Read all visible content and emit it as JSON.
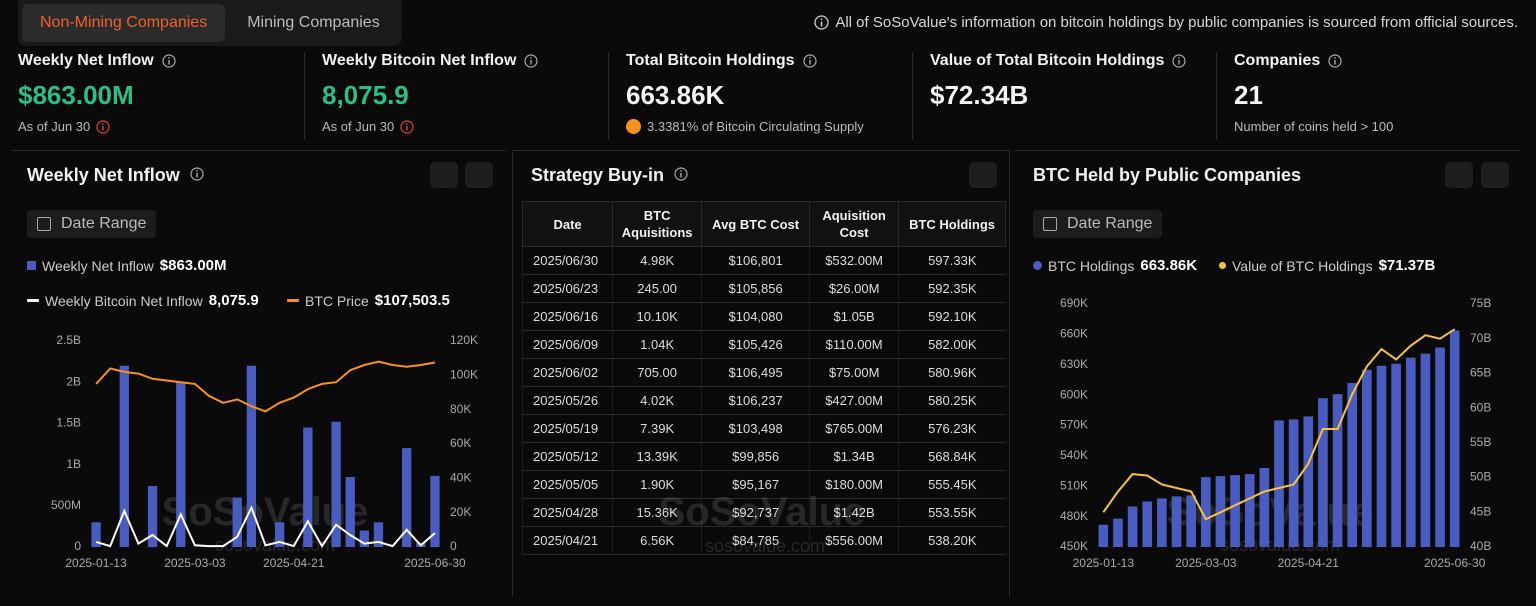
{
  "tabs": [
    "Non-Mining Companies",
    "Mining Companies"
  ],
  "notice": "All of SoSoValue's information on bitcoin holdings by public companies is sourced from official sources.",
  "stats": [
    {
      "label": "Weekly Net Inflow",
      "value": "$863.00M",
      "note": "As of Jun 30"
    },
    {
      "label": "Weekly Bitcoin Net Inflow",
      "value": "8,075.9",
      "note": "As of Jun 30"
    },
    {
      "label": "Total Bitcoin Holdings",
      "value": "663.86K",
      "note": "3.3381% of Bitcoin Circulating Supply"
    },
    {
      "label": "Value of Total Bitcoin Holdings",
      "value": "$72.34B"
    },
    {
      "label": "Companies",
      "value": "21",
      "note": "Number of coins held > 100"
    }
  ],
  "watermark": "SoSoValue",
  "watermark_url": "sosovalue.com",
  "inflow_chart": {
    "type": "bar",
    "title": "Weekly Net Inflow",
    "date_range": "Date Range",
    "categories": [
      "2025-01-13",
      null,
      null,
      null,
      null,
      null,
      null,
      "2025-03-03",
      null,
      null,
      null,
      null,
      null,
      null,
      "2025-04-21",
      null,
      null,
      null,
      null,
      null,
      null,
      null,
      null,
      null,
      "2025-06-30"
    ],
    "ylim": [
      0,
      2500000000
    ],
    "yticks": [
      0,
      {
        "value": 500000000,
        "label": "500M"
      },
      {
        "value": 1000000000,
        "label": "1B"
      },
      {
        "value": 1500000000,
        "label": "1.5B"
      },
      {
        "value": 2000000000,
        "label": "2B"
      },
      {
        "value": 2500000000,
        "label": "2.5B"
      }
    ],
    "y2lim": [
      0,
      120000
    ],
    "y2ticks": [
      0,
      {
        "value": 20000,
        "label": "20K"
      },
      {
        "value": 40000,
        "label": "40K"
      },
      {
        "value": 60000,
        "label": "60K"
      },
      {
        "value": 80000,
        "label": "80K"
      },
      {
        "value": 100000,
        "label": "100K"
      },
      {
        "value": 120000,
        "label": "120K"
      }
    ],
    "series": [
      {
        "name": "Weekly Net Inflow",
        "latest": "$863.00M",
        "type": "bar",
        "color": "#4a5cbf",
        "values": [
          300000000,
          0,
          2200000000,
          0,
          740000000,
          0,
          2000000000,
          0,
          0,
          0,
          600000000,
          2200000000,
          0,
          300000000,
          0,
          1450000000,
          0,
          1520000000,
          850000000,
          200000000,
          300000000,
          0,
          1200000000,
          50000000,
          863000000
        ]
      },
      {
        "name": "Weekly Bitcoin Net Inflow",
        "latest": "8,075.9",
        "type": "line",
        "axis": "y2",
        "color": "#ffffff",
        "values": [
          3000,
          500,
          21000,
          2000,
          7000,
          500,
          19000,
          1000,
          500,
          500,
          6000,
          23000,
          1000,
          3000,
          500,
          15000,
          500,
          13000,
          7000,
          2000,
          3000,
          500,
          10000,
          1000,
          8075.9
        ]
      },
      {
        "name": "BTC Price",
        "latest": "$107,503.5",
        "type": "line",
        "axis": "y2",
        "color": "#f7931a",
        "values": [
          95000,
          104000,
          102000,
          101000,
          98000,
          97000,
          96000,
          95000,
          88000,
          84000,
          86000,
          82000,
          79000,
          84000,
          87000,
          92000,
          95000,
          96000,
          103000,
          106000,
          108000,
          106000,
          105000,
          106000,
          107503.5
        ]
      }
    ]
  },
  "table": {
    "title": "Strategy Buy-in",
    "headers": [
      "Date",
      "BTC Aquisitions",
      "Avg BTC Cost",
      "Aquisition Cost",
      "BTC Holdings"
    ],
    "rows": [
      [
        "2025/06/30",
        "4.98K",
        "$106,801",
        "$532.00M",
        "597.33K"
      ],
      [
        "2025/06/23",
        "245.00",
        "$105,856",
        "$26.00M",
        "592.35K"
      ],
      [
        "2025/06/16",
        "10.10K",
        "$104,080",
        "$1.05B",
        "592.10K"
      ],
      [
        "2025/06/09",
        "1.04K",
        "$105,426",
        "$110.00M",
        "582.00K"
      ],
      [
        "2025/06/02",
        "705.00",
        "$106,495",
        "$75.00M",
        "580.96K"
      ],
      [
        "2025/05/26",
        "4.02K",
        "$106,237",
        "$427.00M",
        "580.25K"
      ],
      [
        "2025/05/19",
        "7.39K",
        "$103,498",
        "$765.00M",
        "576.23K"
      ],
      [
        "2025/05/12",
        "13.39K",
        "$99,856",
        "$1.34B",
        "568.84K"
      ],
      [
        "2025/05/05",
        "1.90K",
        "$95,167",
        "$180.00M",
        "555.45K"
      ],
      [
        "2025/04/28",
        "15.36K",
        "$92,737",
        "$1.42B",
        "553.55K"
      ],
      [
        "2025/04/21",
        "6.56K",
        "$84,785",
        "$556.00M",
        "538.20K"
      ]
    ]
  },
  "holdings_chart": {
    "type": "bar",
    "title": "BTC Held by Public Companies",
    "date_range": "Date Range",
    "categories": [
      "2025-01-13",
      null,
      null,
      null,
      null,
      null,
      null,
      "2025-03-03",
      null,
      null,
      null,
      null,
      null,
      null,
      "2025-04-21",
      null,
      null,
      null,
      null,
      null,
      null,
      null,
      null,
      null,
      "2025-06-30"
    ],
    "ylim": [
      450000,
      690000
    ],
    "yticks": [
      {
        "value": 450000,
        "label": "450K"
      },
      {
        "value": 480000,
        "label": "480K"
      },
      {
        "value": 510000,
        "label": "510K"
      },
      {
        "value": 540000,
        "label": "540K"
      },
      {
        "value": 570000,
        "label": "570K"
      },
      {
        "value": 600000,
        "label": "600K"
      },
      {
        "value": 630000,
        "label": "630K"
      },
      {
        "value": 660000,
        "label": "660K"
      },
      {
        "value": 690000,
        "label": "690K"
      }
    ],
    "y2lim": [
      40000000000,
      75000000000
    ],
    "y2ticks": [
      {
        "value": 40000000000,
        "label": "40B"
      },
      {
        "value": 45000000000,
        "label": "45B"
      },
      {
        "value": 50000000000,
        "label": "50B"
      },
      {
        "value": 55000000000,
        "label": "55B"
      },
      {
        "value": 60000000000,
        "label": "60B"
      },
      {
        "value": 65000000000,
        "label": "65B"
      },
      {
        "value": 70000000000,
        "label": "70B"
      },
      {
        "value": 75000000000,
        "label": "75B"
      }
    ],
    "series": [
      {
        "name": "BTC Holdings",
        "latest": "663.86K",
        "type": "bar",
        "color": "#4a5cbf",
        "values": [
          472000,
          478000,
          490000,
          495000,
          498000,
          500000,
          501000,
          519000,
          520000,
          521000,
          522000,
          528000,
          575000,
          576000,
          579000,
          597000,
          601000,
          612000,
          625000,
          629000,
          631000,
          637000,
          641000,
          647000,
          663860
        ]
      },
      {
        "name": "Value of BTC Holdings",
        "latest": "$71.37B",
        "type": "line",
        "axis": "y2",
        "color": "#f5c242",
        "values": [
          45000000000,
          48000000000,
          50500000000,
          50300000000,
          49000000000,
          48500000000,
          48000000000,
          44000000000,
          45000000000,
          46000000000,
          47000000000,
          48000000000,
          48500000000,
          49000000000,
          52000000000,
          57000000000,
          57000000000,
          62000000000,
          66000000000,
          68500000000,
          67000000000,
          69000000000,
          70500000000,
          70000000000,
          71370000000
        ]
      }
    ]
  }
}
